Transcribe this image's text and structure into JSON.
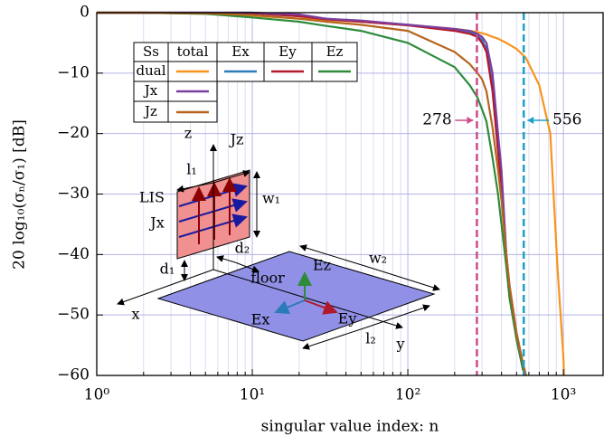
{
  "chart_data": {
    "type": "line",
    "xlabel": "singular value index: n",
    "ylabel": "20 log₁₀(σₙ/σ₁) [dB]",
    "xscale": "log",
    "xlim": [
      1,
      1800
    ],
    "ylim": [
      -60,
      0
    ],
    "xticks": [
      {
        "value": 1,
        "label": "10⁰"
      },
      {
        "value": 10,
        "label": "10¹"
      },
      {
        "value": 100,
        "label": "10²"
      },
      {
        "value": 1000,
        "label": "10³"
      }
    ],
    "xminorticks": [
      2,
      3,
      4,
      5,
      6,
      7,
      8,
      9,
      20,
      30,
      40,
      50,
      60,
      70,
      80,
      90,
      200,
      300,
      400,
      500,
      600,
      700,
      800,
      900
    ],
    "yticks": [
      {
        "value": -60,
        "label": "−60"
      },
      {
        "value": -50,
        "label": "−50"
      },
      {
        "value": -40,
        "label": "−40"
      },
      {
        "value": -30,
        "label": "−30"
      },
      {
        "value": -20,
        "label": "−20"
      },
      {
        "value": -10,
        "label": "−10"
      },
      0
    ],
    "grid": true,
    "x": [
      1,
      2,
      5,
      10,
      20,
      30,
      50,
      100,
      200,
      250,
      280,
      300,
      320,
      350,
      380,
      400,
      430,
      450,
      500,
      550,
      575,
      700,
      824,
      920,
      1000,
      1010
    ],
    "series": [
      {
        "source": "dual",
        "field": "total",
        "color": "#f7941d",
        "values": [
          0,
          0,
          -0.2,
          -0.5,
          -1,
          -1.2,
          -1.5,
          -2,
          -2.7,
          -3,
          -3.2,
          -3.4,
          -3.6,
          -4,
          -4.3,
          -4.6,
          -5,
          -5.3,
          -6,
          -7,
          -7.5,
          -12,
          -20,
          -43,
          -57,
          -60
        ]
      },
      {
        "source": "dual",
        "field": "Ex",
        "color": "#2b7bba",
        "values": [
          0,
          0,
          0,
          0,
          -0.5,
          -1,
          -1.4,
          -2,
          -2.8,
          -3.2,
          -3.8,
          -4.5,
          -6,
          -12,
          -22,
          -28,
          -40,
          -46,
          -54,
          -59,
          -60,
          null,
          null,
          null,
          null,
          null
        ]
      },
      {
        "source": "dual",
        "field": "Ey",
        "color": "#b2182b",
        "values": [
          0,
          0,
          0,
          -0.1,
          -0.6,
          -1.1,
          -1.5,
          -2.1,
          -3,
          -3.5,
          -4,
          -5,
          -6.5,
          -13,
          -23,
          -29,
          -41,
          -47,
          -54,
          -59,
          -60,
          null,
          null,
          null,
          null,
          null
        ]
      },
      {
        "source": "dual",
        "field": "Ez",
        "color": "#2e8b3a",
        "values": [
          0,
          0,
          -0.2,
          -0.8,
          -1.5,
          -2.2,
          -3,
          -5,
          -9,
          -12,
          -14,
          -16,
          -18,
          -24,
          -30,
          -35,
          -42,
          -47,
          -54,
          -59,
          -60,
          null,
          null,
          null,
          null,
          null
        ]
      },
      {
        "source": "Jx",
        "field": "total",
        "color": "#7b3fa0",
        "values": [
          0,
          0,
          0,
          0,
          -0.3,
          -1,
          -1.3,
          -2,
          -2.7,
          -3,
          -3.5,
          -4,
          -5,
          -10,
          -20,
          -26,
          -40,
          -45,
          -53,
          -58,
          -60,
          null,
          null,
          null,
          null,
          null
        ]
      },
      {
        "source": "Jz",
        "field": "total",
        "color": "#b5651d",
        "values": [
          0,
          0,
          -0.1,
          -0.4,
          -1,
          -1.5,
          -2,
          -3,
          -6.5,
          -8.5,
          -10,
          -11,
          -13,
          -19,
          -26,
          -31,
          -40,
          -45,
          -53,
          -58,
          -60,
          null,
          null,
          null,
          null,
          null
        ]
      }
    ],
    "legend": {
      "columns": [
        "Ss",
        "total",
        "Ex",
        "Ey",
        "Ez"
      ],
      "rows": [
        "dual",
        "Jx",
        "Jz"
      ]
    },
    "annotations": [
      {
        "x": 278,
        "color": "#cc4c8c"
      },
      {
        "x": 556,
        "color": "#1ea0c8"
      }
    ]
  },
  "diagram": {
    "labels": [
      "z",
      "Jz",
      "l₁",
      "LIS",
      "w₁",
      "Jx",
      "d₂",
      "d₁",
      "x",
      "floor",
      "w₂",
      "Ez",
      "Ex",
      "Ey",
      "l₂",
      "y"
    ]
  }
}
